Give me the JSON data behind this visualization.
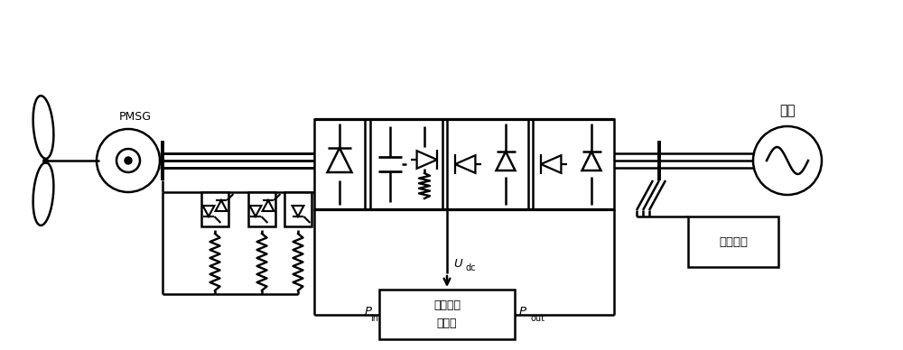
{
  "bg_color": "#ffffff",
  "lc": "#000000",
  "lw": 1.8,
  "labels": {
    "pmsg": "PMSG",
    "grid_label": "电网",
    "reactive": "无功补偿",
    "ctrl_line1": "卸载单元",
    "ctrl_line2": "控制器",
    "udc_main": "U",
    "udc_sub": "dc",
    "pin_main": "P",
    "pin_sub": "in",
    "pout_main": "P",
    "pout_sub": "out"
  }
}
